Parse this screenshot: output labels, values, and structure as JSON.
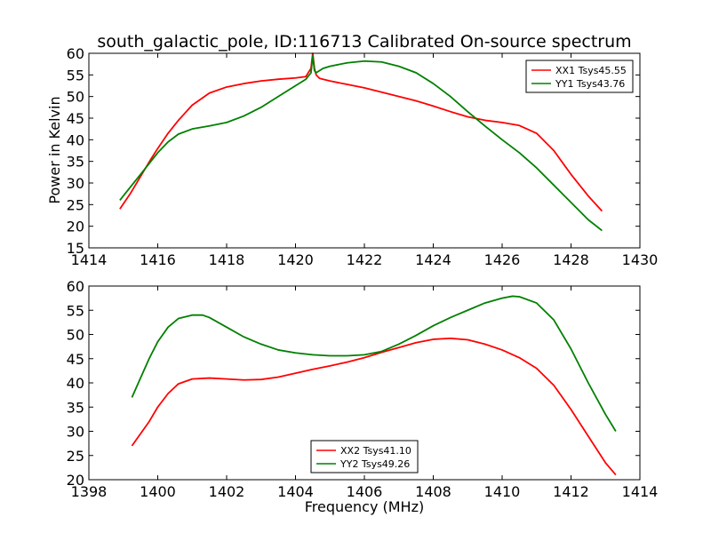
{
  "chart_data": [
    {
      "type": "line",
      "title": "south_galactic_pole, ID:116713 Calibrated On-source spectrum",
      "xlabel": "",
      "ylabel": "Power in Kelvin",
      "xlim": [
        1414,
        1430
      ],
      "ylim": [
        15,
        60
      ],
      "x_ticks": [
        "1414",
        "1416",
        "1418",
        "1420",
        "1422",
        "1424",
        "1426",
        "1428",
        "1430"
      ],
      "y_ticks": [
        "15",
        "20",
        "25",
        "30",
        "35",
        "40",
        "45",
        "50",
        "55",
        "60"
      ],
      "grid": false,
      "legend_position": "top-right",
      "series": [
        {
          "name": "XX1 Tsys45.55",
          "color": "#ff0000",
          "x": [
            1414.9,
            1415.2,
            1415.5,
            1415.8,
            1416.0,
            1416.3,
            1416.6,
            1417.0,
            1417.5,
            1418.0,
            1418.5,
            1419.0,
            1419.5,
            1420.0,
            1420.3,
            1420.45,
            1420.5,
            1420.55,
            1420.6,
            1420.7,
            1421.0,
            1421.5,
            1422.0,
            1422.5,
            1423.0,
            1423.5,
            1424.0,
            1424.5,
            1425.0,
            1425.5,
            1426.0,
            1426.5,
            1427.0,
            1427.5,
            1428.0,
            1428.5,
            1428.9
          ],
          "y": [
            24.0,
            27.5,
            31.5,
            35.5,
            38.0,
            41.5,
            44.5,
            48.0,
            50.8,
            52.2,
            53.0,
            53.6,
            54.0,
            54.3,
            54.6,
            56.5,
            60.0,
            56.5,
            55.0,
            54.2,
            53.6,
            52.8,
            52.0,
            51.0,
            50.0,
            49.0,
            47.8,
            46.5,
            45.3,
            44.5,
            44.0,
            43.3,
            41.5,
            37.5,
            32.0,
            27.0,
            23.5
          ]
        },
        {
          "name": "YY1 Tsys43.76",
          "color": "#008000",
          "x": [
            1414.9,
            1415.2,
            1415.5,
            1415.8,
            1416.0,
            1416.3,
            1416.6,
            1417.0,
            1417.5,
            1418.0,
            1418.5,
            1419.0,
            1419.5,
            1420.0,
            1420.3,
            1420.45,
            1420.5,
            1420.55,
            1420.6,
            1420.8,
            1421.0,
            1421.5,
            1422.0,
            1422.5,
            1423.0,
            1423.5,
            1424.0,
            1424.5,
            1425.0,
            1425.5,
            1426.0,
            1426.5,
            1427.0,
            1427.5,
            1428.0,
            1428.5,
            1428.9
          ],
          "y": [
            26.0,
            29.0,
            32.0,
            35.0,
            37.0,
            39.5,
            41.3,
            42.5,
            43.2,
            44.0,
            45.5,
            47.5,
            50.0,
            52.5,
            54.0,
            55.5,
            59.5,
            56.0,
            55.5,
            56.5,
            57.0,
            57.8,
            58.2,
            58.0,
            57.0,
            55.5,
            53.0,
            50.0,
            46.5,
            43.2,
            40.0,
            37.0,
            33.5,
            29.5,
            25.5,
            21.5,
            19.0
          ]
        }
      ]
    },
    {
      "type": "line",
      "title": "",
      "xlabel": "Frequency (MHz)",
      "ylabel": "",
      "xlim": [
        1398,
        1414
      ],
      "ylim": [
        20,
        60
      ],
      "x_ticks": [
        "1398",
        "1400",
        "1402",
        "1404",
        "1406",
        "1408",
        "1410",
        "1412",
        "1414"
      ],
      "y_ticks": [
        "20",
        "25",
        "30",
        "35",
        "40",
        "45",
        "50",
        "55",
        "60"
      ],
      "grid": false,
      "legend_position": "lower-center",
      "series": [
        {
          "name": "XX2 Tsys41.10",
          "color": "#ff0000",
          "x": [
            1399.25,
            1399.5,
            1399.75,
            1400.0,
            1400.3,
            1400.6,
            1401.0,
            1401.5,
            1402.0,
            1402.5,
            1403.0,
            1403.5,
            1404.0,
            1404.5,
            1405.0,
            1405.5,
            1406.0,
            1406.5,
            1407.0,
            1407.5,
            1408.0,
            1408.5,
            1409.0,
            1409.5,
            1410.0,
            1410.5,
            1411.0,
            1411.5,
            1412.0,
            1412.5,
            1413.0,
            1413.3
          ],
          "y": [
            27.0,
            29.5,
            32.0,
            35.0,
            37.8,
            39.8,
            40.8,
            41.0,
            40.8,
            40.6,
            40.7,
            41.2,
            42.0,
            42.8,
            43.5,
            44.3,
            45.2,
            46.3,
            47.3,
            48.3,
            49.0,
            49.2,
            48.9,
            48.0,
            46.8,
            45.2,
            43.0,
            39.5,
            34.5,
            29.0,
            23.5,
            21.0
          ]
        },
        {
          "name": "YY2 Tsys49.26",
          "color": "#008000",
          "x": [
            1399.25,
            1399.5,
            1399.75,
            1400.0,
            1400.3,
            1400.6,
            1401.0,
            1401.3,
            1401.5,
            1402.0,
            1402.5,
            1403.0,
            1403.5,
            1404.0,
            1404.5,
            1405.0,
            1405.5,
            1406.0,
            1406.5,
            1407.0,
            1407.5,
            1408.0,
            1408.5,
            1409.0,
            1409.5,
            1410.0,
            1410.3,
            1410.5,
            1411.0,
            1411.5,
            1412.0,
            1412.5,
            1413.0,
            1413.3
          ],
          "y": [
            37.0,
            41.0,
            45.0,
            48.5,
            51.5,
            53.3,
            54.0,
            54.0,
            53.5,
            51.5,
            49.5,
            48.0,
            46.8,
            46.2,
            45.8,
            45.6,
            45.6,
            45.8,
            46.5,
            48.0,
            49.8,
            51.8,
            53.5,
            55.0,
            56.5,
            57.5,
            57.9,
            57.8,
            56.5,
            53.0,
            47.0,
            40.0,
            33.5,
            30.0
          ]
        }
      ]
    }
  ]
}
